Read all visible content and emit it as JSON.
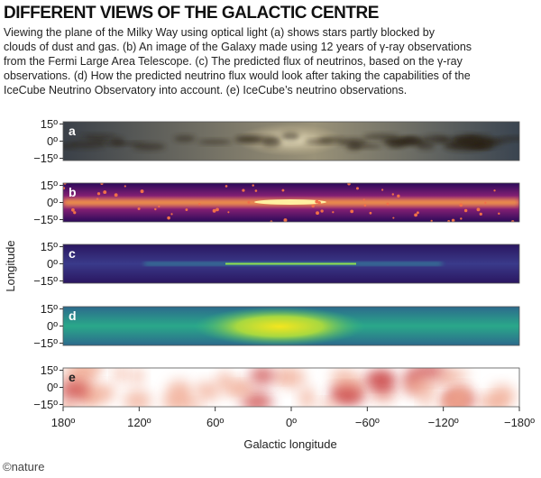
{
  "title": "DIFFERENT VIEWS OF THE GALACTIC CENTRE",
  "caption": [
    "Viewing the plane of the Milky Way using optical light (a) shows stars partly blocked by",
    "clouds of dust and gas. (b) An image of the Galaxy made using 12 years of γ-ray observations",
    "from the Fermi Large Area Telescope. (c) The predicted flux of neutrinos, based on the γ-ray",
    "observations. (d) How the predicted neutrino flux would look after taking the capabilities of the",
    "IceCube Neutrino Observatory into account. (e) IceCube’s neutrino observations."
  ],
  "y_axis_label": "Longitude",
  "x_axis_label": "Galactic longitude",
  "credit": "©nature",
  "xlim": [
    180,
    -180
  ],
  "xticks": [
    {
      "value": 180,
      "label": "180º"
    },
    {
      "value": 120,
      "label": "120º"
    },
    {
      "value": 60,
      "label": "60º"
    },
    {
      "value": 0,
      "label": "0º"
    },
    {
      "value": -60,
      "label": "−60º"
    },
    {
      "value": -120,
      "label": "−120º"
    },
    {
      "value": -180,
      "label": "−180º"
    }
  ],
  "ylim": [
    -17,
    17
  ],
  "yticks": [
    {
      "value": 15,
      "label": "15º"
    },
    {
      "value": 0,
      "label": "0º"
    },
    {
      "value": -15,
      "label": "−15º"
    }
  ],
  "panels": [
    {
      "label": "a"
    },
    {
      "label": "b"
    },
    {
      "label": "c"
    },
    {
      "label": "d"
    },
    {
      "label": "e"
    }
  ]
}
